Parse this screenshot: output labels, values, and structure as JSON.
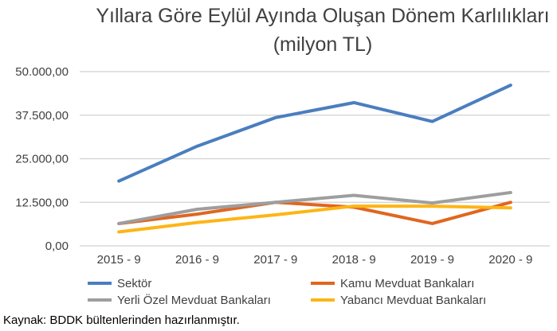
{
  "chart_data": {
    "type": "line",
    "title": [
      "Yıllara Göre Eylül Ayında Oluşan Dönem Karlılıkları",
      "(milyon TL)"
    ],
    "xlabel": "",
    "ylabel": "",
    "categories": [
      "2015 - 9",
      "2016 - 9",
      "2017 - 9",
      "2018 - 9",
      "2019 - 9",
      "2020 - 9"
    ],
    "ylim": [
      0,
      50000
    ],
    "yticks": [
      0,
      12500,
      25000,
      37500,
      50000
    ],
    "ytick_labels": [
      "0,00",
      "12.500,00",
      "25.000,00",
      "37.500,00",
      "50.000,00"
    ],
    "grid": true,
    "legend_position": "bottom",
    "series": [
      {
        "name": "Sektör",
        "color": "#4a7ebf",
        "values": [
          18600,
          28600,
          36800,
          41100,
          35700,
          46100
        ]
      },
      {
        "name": "Kamu Mevduat Bankaları",
        "color": "#e0661f",
        "values": [
          6400,
          9100,
          12500,
          11100,
          6400,
          12500
        ]
      },
      {
        "name": "Yerli Özel Mevduat Bankaları",
        "color": "#9e9e9e",
        "values": [
          6400,
          10500,
          12500,
          14500,
          12300,
          15300
        ]
      },
      {
        "name": "Yabancı Mevduat Bankaları",
        "color": "#fdb515",
        "values": [
          4000,
          6700,
          8900,
          11400,
          11400,
          10900
        ]
      }
    ]
  },
  "source": "Kaynak: BDDK bültenlerinden hazırlanmıştır."
}
